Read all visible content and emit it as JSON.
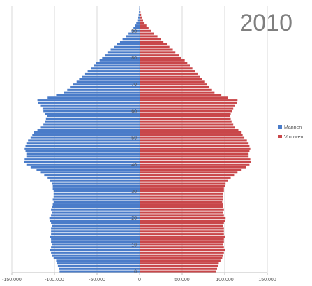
{
  "chart_data": {
    "type": "bar",
    "orientation": "horizontal",
    "title": "2010",
    "xlabel": "",
    "ylabel": "",
    "xlim": [
      -150000,
      150000
    ],
    "x_ticks": [
      -150000,
      -100000,
      -50000,
      0,
      50000,
      100000,
      150000
    ],
    "x_tick_labels": [
      "-150.000",
      "-100.000",
      "-50.000",
      "0",
      "50.000",
      "100.000",
      "150.000"
    ],
    "y_ticks": [
      0,
      10,
      20,
      30,
      40,
      50,
      60,
      70,
      80,
      90
    ],
    "y_tick_labels": [
      "0",
      "10",
      "20",
      "30",
      "40",
      "50",
      "60",
      "70",
      "80",
      "90"
    ],
    "grid": "vertical",
    "legend_position": "right",
    "categories": [
      0,
      1,
      2,
      3,
      4,
      5,
      6,
      7,
      8,
      9,
      10,
      11,
      12,
      13,
      14,
      15,
      16,
      17,
      18,
      19,
      20,
      21,
      22,
      23,
      24,
      25,
      26,
      27,
      28,
      29,
      30,
      31,
      32,
      33,
      34,
      35,
      36,
      37,
      38,
      39,
      40,
      41,
      42,
      43,
      44,
      45,
      46,
      47,
      48,
      49,
      50,
      51,
      52,
      53,
      54,
      55,
      56,
      57,
      58,
      59,
      60,
      61,
      62,
      63,
      64,
      65,
      66,
      67,
      68,
      69,
      70,
      71,
      72,
      73,
      74,
      75,
      76,
      77,
      78,
      79,
      80,
      81,
      82,
      83,
      84,
      85,
      86,
      87,
      88,
      89,
      90,
      91,
      92,
      93,
      94,
      95,
      96,
      97,
      98,
      99
    ],
    "series": [
      {
        "name": "Mannen",
        "color": "#4a7cc9",
        "values": [
          -94000,
          -95000,
          -96000,
          -97000,
          -98000,
          -101000,
          -103000,
          -104000,
          -105000,
          -104000,
          -103000,
          -104000,
          -104000,
          -105000,
          -104000,
          -104000,
          -104000,
          -103000,
          -104000,
          -105000,
          -106000,
          -104000,
          -103000,
          -104000,
          -103000,
          -102000,
          -101000,
          -102000,
          -101000,
          -101000,
          -101000,
          -102000,
          -102000,
          -103000,
          -105000,
          -108000,
          -112000,
          -116000,
          -121000,
          -128000,
          -133000,
          -136000,
          -135000,
          -133000,
          -133000,
          -134000,
          -135000,
          -134000,
          -133000,
          -131000,
          -128000,
          -126000,
          -124000,
          -120000,
          -116000,
          -113000,
          -111000,
          -110000,
          -109000,
          -111000,
          -113000,
          -114000,
          -116000,
          -119000,
          -120000,
          -108000,
          -98000,
          -89000,
          -85000,
          -81000,
          -78000,
          -74000,
          -71000,
          -68000,
          -64000,
          -61000,
          -57000,
          -54000,
          -51000,
          -47000,
          -44000,
          -41000,
          -37000,
          -34000,
          -30000,
          -27000,
          -23000,
          -20000,
          -16000,
          -13000,
          -9500,
          -7200,
          -5400,
          -3900,
          -2700,
          -1800,
          -1100,
          -700,
          -400,
          -250
        ]
      },
      {
        "name": "Vrouwen",
        "color": "#c9474a",
        "values": [
          90000,
          91000,
          92000,
          93000,
          95000,
          97000,
          98000,
          99000,
          100000,
          99000,
          98000,
          99000,
          99000,
          100000,
          99000,
          99000,
          99000,
          98000,
          99000,
          100000,
          101000,
          99000,
          98000,
          99000,
          98000,
          98000,
          97000,
          98000,
          98000,
          98000,
          99000,
          99000,
          100000,
          101000,
          104000,
          107000,
          111000,
          115000,
          119000,
          125000,
          129000,
          131000,
          130000,
          128000,
          128000,
          129000,
          130000,
          129000,
          128000,
          126000,
          123000,
          121000,
          119000,
          116000,
          112000,
          110000,
          108000,
          107000,
          106000,
          107000,
          109000,
          110000,
          112000,
          114000,
          115000,
          104000,
          96000,
          88000,
          85000,
          82000,
          79000,
          76000,
          73000,
          71000,
          68000,
          65000,
          62000,
          59000,
          56000,
          53000,
          49000,
          46000,
          42000,
          39000,
          35000,
          32000,
          28000,
          25000,
          21000,
          17000,
          13500,
          10500,
          8000,
          5800,
          4100,
          2800,
          1800,
          1100,
          650,
          380
        ]
      }
    ]
  }
}
